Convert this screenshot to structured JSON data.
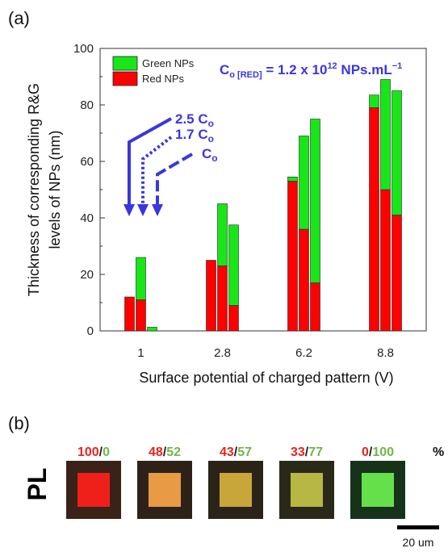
{
  "panel_a_label": "(a)",
  "panel_b_label": "(b)",
  "colors": {
    "red": "#ff0000",
    "green": "#19e619",
    "annotation": "#3a36e0",
    "ratio_red": "#e8231e",
    "ratio_green": "#71b64a"
  },
  "chart_data": {
    "type": "bar",
    "stacked": true,
    "categories": [
      "1",
      "2.8",
      "6.2",
      "8.8"
    ],
    "bars_per_category": 3,
    "series": [
      {
        "name": "Red NPs",
        "color": "#ff0000",
        "values": [
          [
            12,
            11,
            0
          ],
          [
            25,
            23,
            9
          ],
          [
            53,
            36,
            17
          ],
          [
            79,
            50,
            41
          ]
        ]
      },
      {
        "name": "Green NPs",
        "color": "#19e619",
        "values": [
          [
            0,
            15,
            1.3
          ],
          [
            0,
            22,
            28.5
          ],
          [
            1.5,
            33,
            58
          ],
          [
            4.5,
            39,
            44
          ]
        ]
      }
    ],
    "xlabel": "Surface potential of charged pattern (V)",
    "ylabel_lines": [
      "Thickness of corresponding R&G",
      "levels of NPs (nm)"
    ],
    "ylim": [
      0,
      100
    ],
    "yticks": [
      "0",
      "20",
      "40",
      "60",
      "80",
      "100"
    ],
    "legend": {
      "position": "top-left",
      "entries": [
        "Green NPs",
        "Red NPs"
      ]
    },
    "annotation": {
      "base": "C",
      "sub": "o [RED]",
      "mid": " = 1.2 x 10",
      "sup": "12",
      "tail": " NPs.mL",
      "sup2": "−1"
    },
    "concentration_labels": [
      {
        "coef": "2.5 ",
        "base": "C",
        "sub": "o"
      },
      {
        "coef": "1.7 ",
        "base": "C",
        "sub": "o"
      },
      {
        "coef": "",
        "base": "C",
        "sub": "o"
      }
    ]
  },
  "panel_b": {
    "row_label": "PL",
    "percent_sign": "%",
    "ratios": [
      {
        "red": "100",
        "sep": "/",
        "green": "0",
        "fill": "#ef1f1a",
        "bg": "#3a2218"
      },
      {
        "red": "48",
        "sep": "/",
        "green": "52",
        "fill": "#e89a45",
        "bg": "#2e2218"
      },
      {
        "red": "43",
        "sep": "/",
        "green": "57",
        "fill": "#c9a63a",
        "bg": "#2a2418"
      },
      {
        "red": "33",
        "sep": "/",
        "green": "77",
        "fill": "#b7b843",
        "bg": "#2a2818"
      },
      {
        "red": "0",
        "sep": "/",
        "green": "100",
        "fill": "#66e04a",
        "bg": "#16331a"
      }
    ],
    "scale_bar_label": "20 um"
  }
}
